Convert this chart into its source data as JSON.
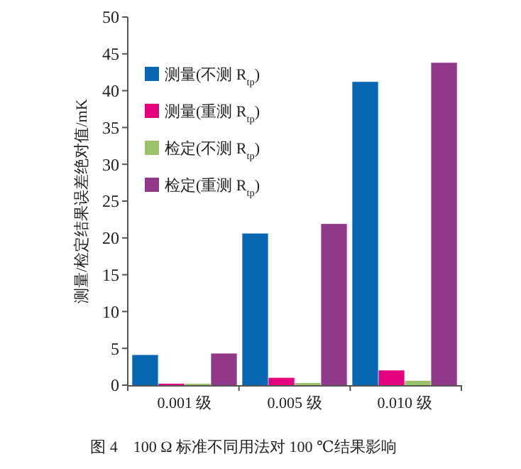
{
  "chart_data": {
    "type": "bar",
    "title": "图 4　100 Ω 标准不同用法对 100 ℃结果影响",
    "ylabel": "测量/检定结果误差绝对值/mK",
    "categories": [
      "0.001 级",
      "0.005 级",
      "0.010 级"
    ],
    "series": [
      {
        "name": "测量(不测 R$_{tp}$)",
        "color": "#0767b0",
        "values": [
          4.1,
          20.6,
          41.2
        ]
      },
      {
        "name": "测量(重测 R$_{tp}$)",
        "color": "#e4007f",
        "values": [
          0.2,
          1.0,
          2.0
        ]
      },
      {
        "name": "检定(不测 R$_{tp}$)",
        "color": "#9bc26b",
        "values": [
          0.2,
          0.3,
          0.6
        ]
      },
      {
        "name": "检定(重测 R$_{tp}$)",
        "color": "#92388a",
        "values": [
          4.3,
          21.9,
          43.8
        ]
      }
    ],
    "ylim": [
      0,
      50
    ],
    "yticks": [
      0,
      5,
      10,
      15,
      20,
      25,
      30,
      35,
      40,
      45,
      50
    ],
    "grid": false,
    "legend": "top left"
  }
}
